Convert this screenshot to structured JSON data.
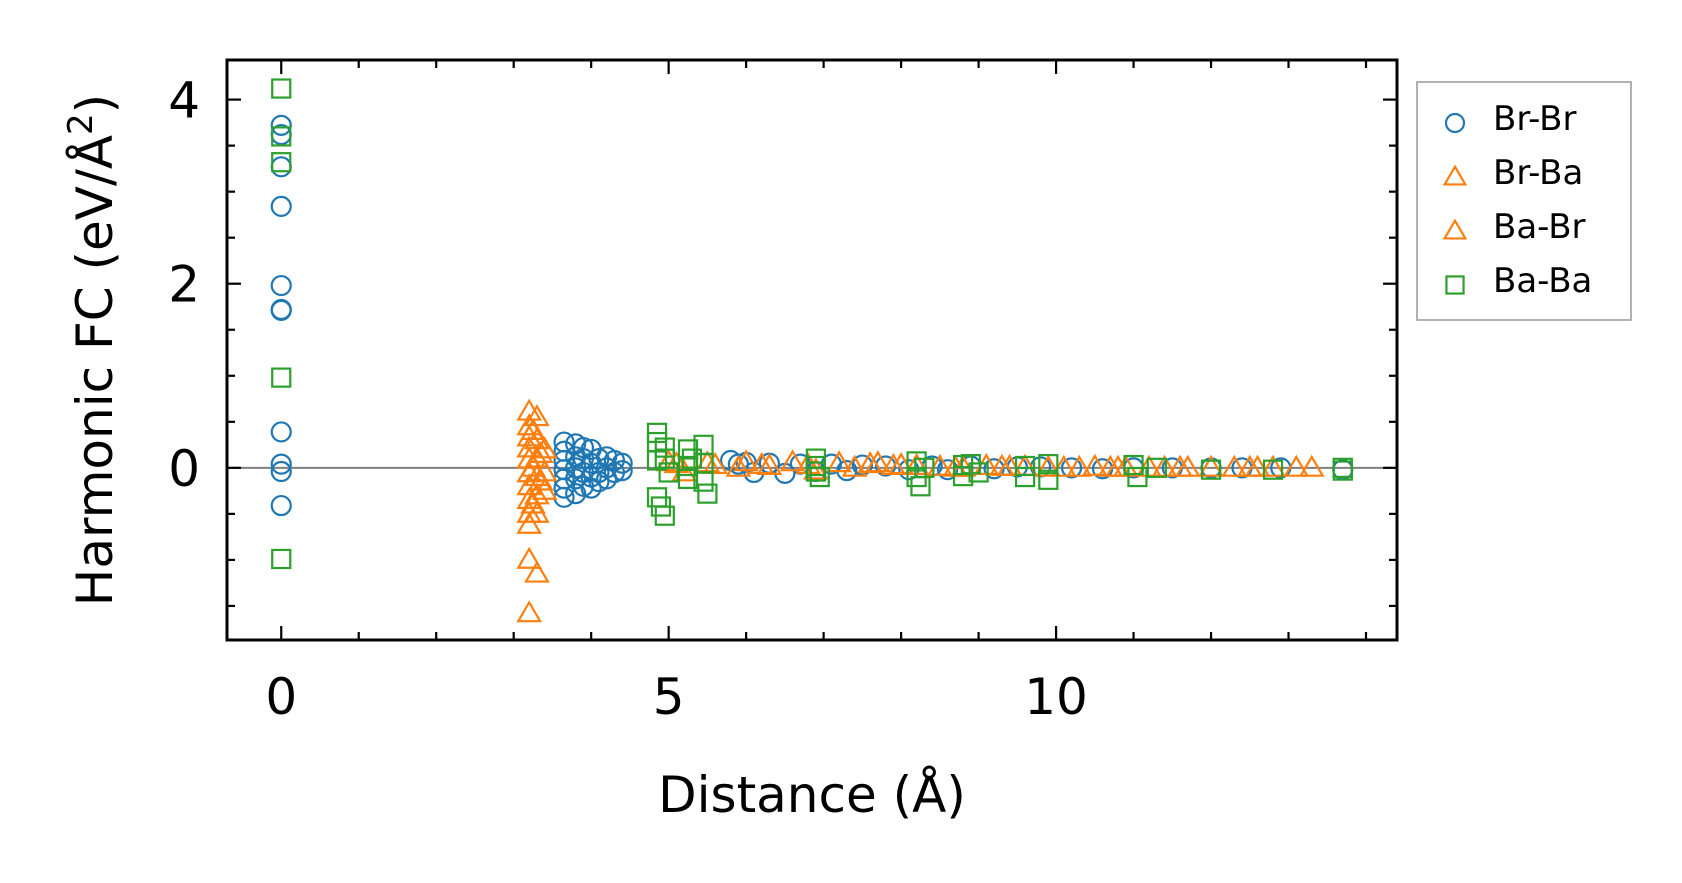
{
  "chart_data": {
    "type": "scatter",
    "xlabel": "Distance (Å)",
    "ylabel_main": "Harmonic FC (eV/Å",
    "ylabel_sup": "2",
    "ylabel_close": ")",
    "xlim": [
      -0.7,
      14.4
    ],
    "ylim": [
      -1.87,
      4.43
    ],
    "xticks": [
      0,
      5,
      10
    ],
    "xtick_labels": [
      "0",
      "5",
      "10"
    ],
    "yticks": [
      0,
      2,
      4
    ],
    "ytick_labels": [
      "0",
      "2",
      "4"
    ],
    "x_minor_step": 1,
    "y_minor_step": 0.5,
    "reference_line_y": 0,
    "reference_line_color": "#808080",
    "legend_position": "outside-right-top",
    "series": [
      {
        "name": "Br-Br",
        "marker": "circle",
        "color": "#1f77b4",
        "points": [
          [
            0,
            3.72
          ],
          [
            0,
            3.62
          ],
          [
            0,
            3.27
          ],
          [
            0,
            2.84
          ],
          [
            0,
            1.98
          ],
          [
            0,
            1.72
          ],
          [
            0,
            1.71
          ],
          [
            0,
            0.39
          ],
          [
            0,
            0.04
          ],
          [
            0,
            -0.04
          ],
          [
            0,
            -0.41
          ],
          [
            3.65,
            0.28
          ],
          [
            3.65,
            0.18
          ],
          [
            3.65,
            0.08
          ],
          [
            3.65,
            -0.02
          ],
          [
            3.65,
            -0.12
          ],
          [
            3.65,
            -0.22
          ],
          [
            3.65,
            -0.32
          ],
          [
            3.8,
            0.26
          ],
          [
            3.8,
            0.12
          ],
          [
            3.8,
            0.0
          ],
          [
            3.8,
            -0.12
          ],
          [
            3.8,
            -0.28
          ],
          [
            3.9,
            0.22
          ],
          [
            3.9,
            0.1
          ],
          [
            3.9,
            -0.05
          ],
          [
            3.9,
            -0.2
          ],
          [
            4.0,
            0.2
          ],
          [
            4.0,
            0.05
          ],
          [
            4.0,
            -0.1
          ],
          [
            4.0,
            -0.22
          ],
          [
            4.1,
            0.1
          ],
          [
            4.1,
            -0.05
          ],
          [
            4.1,
            -0.15
          ],
          [
            4.2,
            0.12
          ],
          [
            4.2,
            0.0
          ],
          [
            4.2,
            -0.12
          ],
          [
            4.3,
            0.08
          ],
          [
            4.3,
            -0.05
          ],
          [
            4.4,
            0.05
          ],
          [
            4.4,
            -0.03
          ],
          [
            5.8,
            0.08
          ],
          [
            5.9,
            0.04
          ],
          [
            6.0,
            0.06
          ],
          [
            6.1,
            -0.05
          ],
          [
            6.3,
            0.05
          ],
          [
            6.5,
            -0.06
          ],
          [
            6.7,
            0.04
          ],
          [
            6.9,
            -0.04
          ],
          [
            7.1,
            0.04
          ],
          [
            7.3,
            -0.03
          ],
          [
            7.5,
            0.03
          ],
          [
            7.8,
            0.02
          ],
          [
            8.1,
            -0.02
          ],
          [
            8.4,
            0.02
          ],
          [
            8.6,
            -0.02
          ],
          [
            8.9,
            0.02
          ],
          [
            9.2,
            -0.01
          ],
          [
            9.5,
            0.01
          ],
          [
            9.8,
            0.01
          ],
          [
            10.2,
            0.0
          ],
          [
            10.6,
            -0.01
          ],
          [
            11.0,
            0.0
          ],
          [
            11.5,
            0.0
          ],
          [
            12.0,
            0.0
          ],
          [
            12.4,
            0.0
          ],
          [
            12.9,
            0.0
          ],
          [
            13.7,
            -0.02
          ]
        ]
      },
      {
        "name": "Br-Ba",
        "marker": "triangle",
        "color": "#ff7f0e",
        "points": [
          [
            3.2,
            0.61
          ],
          [
            3.2,
            0.45
          ],
          [
            3.2,
            0.33
          ],
          [
            3.2,
            0.21
          ],
          [
            3.2,
            0.09
          ],
          [
            3.2,
            -0.06
          ],
          [
            3.2,
            -0.2
          ],
          [
            3.2,
            -0.35
          ],
          [
            3.2,
            -0.5
          ],
          [
            3.2,
            -0.62
          ],
          [
            3.3,
            0.55
          ],
          [
            3.3,
            0.3
          ],
          [
            3.3,
            0.1
          ],
          [
            3.3,
            -0.1
          ],
          [
            3.3,
            -0.3
          ],
          [
            3.3,
            -0.5
          ],
          [
            3.2,
            -1.0
          ],
          [
            3.3,
            -1.15
          ],
          [
            3.2,
            -1.58
          ],
          [
            3.4,
            0.2
          ],
          [
            3.4,
            -0.05
          ],
          [
            3.4,
            -0.25
          ],
          [
            5.0,
            0.06
          ],
          [
            5.2,
            -0.05
          ],
          [
            5.5,
            0.05
          ],
          [
            5.9,
            0.0
          ],
          [
            6.0,
            0.06
          ],
          [
            6.3,
            0.02
          ],
          [
            6.6,
            0.06
          ],
          [
            6.9,
            -0.03
          ],
          [
            7.2,
            0.05
          ],
          [
            7.4,
            0.0
          ],
          [
            7.6,
            0.04
          ],
          [
            7.9,
            0.02
          ],
          [
            8.2,
            0.02
          ],
          [
            8.5,
            0.01
          ],
          [
            8.8,
            0.0
          ],
          [
            9.1,
            0.02
          ],
          [
            9.3,
            0.01
          ],
          [
            9.6,
            0.01
          ],
          [
            9.9,
            0.0
          ],
          [
            10.3,
            0.0
          ],
          [
            10.5,
            0.01
          ],
          [
            10.7,
            0.0
          ],
          [
            10.9,
            0.0
          ],
          [
            11.2,
            0.0
          ],
          [
            11.4,
            0.0
          ],
          [
            11.7,
            0.0
          ],
          [
            12.0,
            0.0
          ],
          [
            12.3,
            0.0
          ],
          [
            12.6,
            0.0
          ],
          [
            12.8,
            0.0
          ],
          [
            13.1,
            0.0
          ],
          [
            13.3,
            0.0
          ]
        ]
      },
      {
        "name": "Ba-Br",
        "marker": "triangle",
        "color": "#ff7f0e",
        "points": [
          [
            3.25,
            0.4
          ],
          [
            3.25,
            0.0
          ],
          [
            3.25,
            -0.4
          ],
          [
            3.35,
            0.15
          ],
          [
            3.35,
            -0.15
          ],
          [
            5.1,
            0.04
          ],
          [
            5.6,
            0.03
          ],
          [
            6.2,
            0.03
          ],
          [
            6.8,
            0.03
          ],
          [
            7.7,
            0.05
          ],
          [
            8.0,
            0.03
          ],
          [
            8.7,
            0.0
          ],
          [
            9.4,
            0.01
          ],
          [
            10.1,
            0.0
          ],
          [
            10.8,
            0.0
          ],
          [
            11.6,
            0.0
          ],
          [
            12.5,
            0.0
          ]
        ]
      },
      {
        "name": "Ba-Ba",
        "marker": "square",
        "color": "#2ca02c",
        "points": [
          [
            0,
            4.12
          ],
          [
            0,
            3.6
          ],
          [
            0,
            3.32
          ],
          [
            0,
            0.98
          ],
          [
            0,
            -0.99
          ],
          [
            4.85,
            0.38
          ],
          [
            4.85,
            0.28
          ],
          [
            4.85,
            0.08
          ],
          [
            4.85,
            -0.32
          ],
          [
            4.9,
            -0.42
          ],
          [
            4.95,
            -0.52
          ],
          [
            4.95,
            0.22
          ],
          [
            4.95,
            0.1
          ],
          [
            5.0,
            -0.05
          ],
          [
            5.25,
            0.2
          ],
          [
            5.25,
            0.02
          ],
          [
            5.25,
            -0.12
          ],
          [
            5.3,
            0.1
          ],
          [
            5.45,
            0.25
          ],
          [
            5.45,
            0.05
          ],
          [
            5.45,
            -0.15
          ],
          [
            5.5,
            -0.28
          ],
          [
            6.9,
            0.1
          ],
          [
            6.9,
            0.02
          ],
          [
            6.9,
            -0.04
          ],
          [
            6.95,
            -0.1
          ],
          [
            8.2,
            0.07
          ],
          [
            8.2,
            -0.1
          ],
          [
            8.25,
            -0.2
          ],
          [
            8.3,
            0.0
          ],
          [
            8.8,
            0.03
          ],
          [
            8.8,
            -0.09
          ],
          [
            8.9,
            0.04
          ],
          [
            9.0,
            -0.05
          ],
          [
            9.6,
            0.02
          ],
          [
            9.6,
            -0.1
          ],
          [
            9.9,
            0.04
          ],
          [
            9.9,
            -0.13
          ],
          [
            11.0,
            0.03
          ],
          [
            11.05,
            -0.1
          ],
          [
            11.3,
            0.0
          ],
          [
            12.0,
            -0.02
          ],
          [
            12.8,
            -0.02
          ],
          [
            13.7,
            -0.03
          ],
          [
            13.7,
            0.0
          ]
        ]
      }
    ]
  },
  "legend": {
    "items": [
      {
        "label": "Br-Br",
        "marker": "circle",
        "color": "#1f77b4"
      },
      {
        "label": "Br-Ba",
        "marker": "triangle",
        "color": "#ff7f0e"
      },
      {
        "label": "Ba-Br",
        "marker": "triangle",
        "color": "#ff7f0e"
      },
      {
        "label": "Ba-Ba",
        "marker": "square",
        "color": "#2ca02c"
      }
    ]
  }
}
